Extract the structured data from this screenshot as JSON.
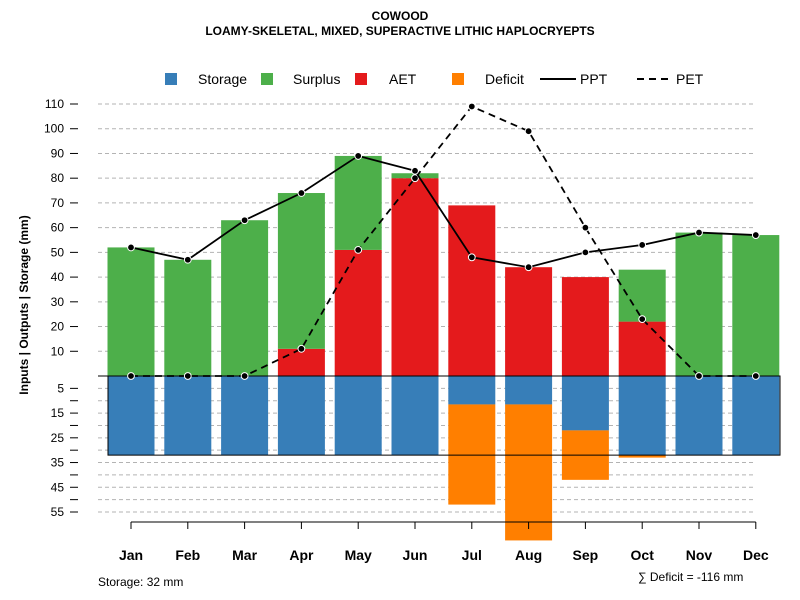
{
  "chart_data": {
    "type": "bar",
    "title": "COWOOD",
    "subtitle": "LOAMY-SKELETAL, MIXED, SUPERACTIVE LITHIC HAPLOCRYEPTS",
    "ylabel": "Inputs | Outputs | Storage    (mm)",
    "xlabel": "",
    "categories": [
      "Jan",
      "Feb",
      "Mar",
      "Apr",
      "May",
      "Jun",
      "Jul",
      "Aug",
      "Sep",
      "Oct",
      "Nov",
      "Dec"
    ],
    "upper_ticks": [
      10,
      20,
      30,
      40,
      50,
      60,
      70,
      80,
      90,
      100,
      110
    ],
    "lower_ticks": [
      5,
      15,
      25,
      35,
      45,
      55
    ],
    "upper_ylim": [
      0,
      110
    ],
    "lower_ylim": [
      0,
      55
    ],
    "storage_capacity": 32,
    "series": [
      {
        "name": "Storage",
        "color": "#377EB8",
        "values": [
          32,
          32,
          32,
          32,
          32,
          32,
          11.5,
          11.5,
          22,
          32,
          32,
          32
        ]
      },
      {
        "name": "Surplus",
        "color": "#4DAF4A",
        "values": [
          52,
          47,
          63,
          63,
          38,
          2,
          0,
          0,
          0,
          21,
          58,
          57
        ]
      },
      {
        "name": "AET",
        "color": "#E41A1C",
        "values": [
          0,
          0,
          0,
          11,
          51,
          80,
          69,
          44,
          40,
          22,
          0,
          0
        ]
      },
      {
        "name": "Deficit",
        "color": "#FF7F00",
        "values": [
          0,
          0,
          0,
          0,
          0,
          0,
          40.5,
          55,
          20,
          1,
          0,
          0
        ]
      },
      {
        "name": "PPT",
        "style": "solid",
        "values": [
          52,
          47,
          63,
          74,
          89,
          83,
          48,
          44,
          50,
          53,
          58,
          57
        ]
      },
      {
        "name": "PET",
        "style": "dashed",
        "values": [
          0,
          0,
          0,
          11,
          51,
          80,
          109,
          99,
          60,
          23,
          0,
          0
        ]
      }
    ],
    "legend": [
      "Storage",
      "Surplus",
      "AET",
      "Deficit",
      "PPT",
      "PET"
    ],
    "legend_position": "top",
    "grid": true
  },
  "footnotes": {
    "storage": "Storage: 32 mm",
    "deficit": "∑ Deficit = -116 mm"
  }
}
